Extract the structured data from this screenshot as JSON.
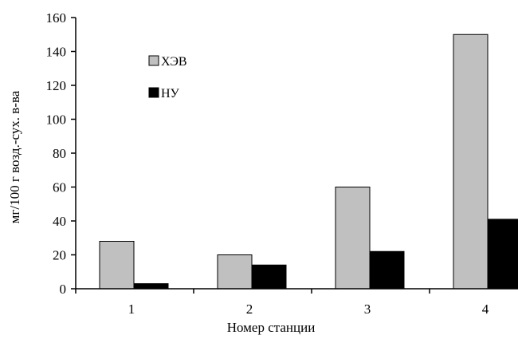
{
  "chart_data": {
    "type": "bar",
    "categories": [
      "1",
      "2",
      "3",
      "4"
    ],
    "series": [
      {
        "name": "ХЭВ",
        "values": [
          28,
          20,
          60,
          150
        ],
        "color": "#c0c0c0"
      },
      {
        "name": "НУ",
        "values": [
          3,
          14,
          22,
          41
        ],
        "color": "#000000"
      }
    ],
    "xlabel": "Номер станции",
    "ylabel": "мг/100 г возд.-сух. в-ва",
    "ylim": [
      0,
      160
    ],
    "yticks": [
      "0",
      "20",
      "40",
      "60",
      "80",
      "100",
      "120",
      "140",
      "160"
    ],
    "grid": false,
    "legend": "upper-left inside plot"
  }
}
